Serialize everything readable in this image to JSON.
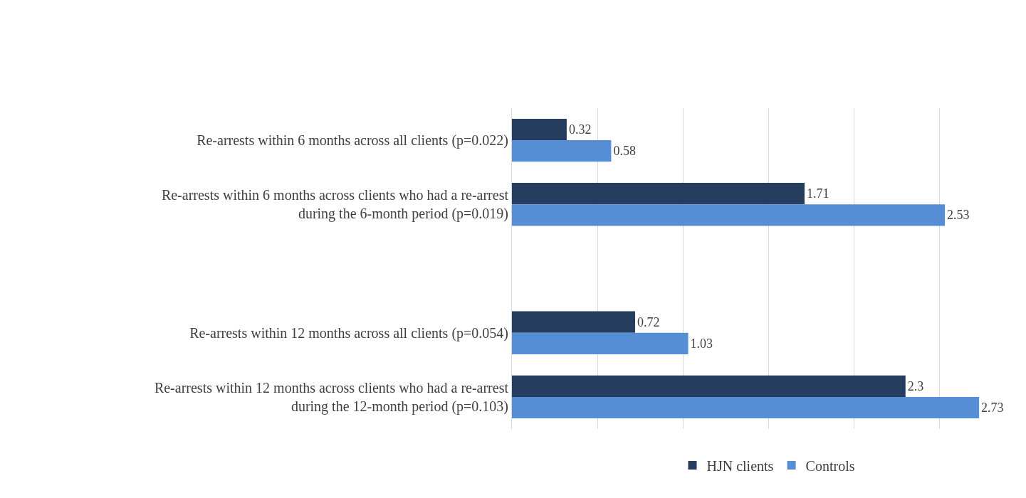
{
  "chart_data": {
    "type": "bar",
    "orientation": "horizontal",
    "categories": [
      "Re-arrests within 6 months across all clients (p=0.022)",
      "Re-arrests within 6 months across clients who had a re-arrest\nduring the 6-month period (p=0.019)",
      null,
      "Re-arrests within 12 months across all clients (p=0.054)",
      "Re-arrests within 12 months across clients who had a re-arrest\nduring the 12-month period (p=0.103)"
    ],
    "series": [
      {
        "name": "HJN clients",
        "color": "#253d5e",
        "values": [
          0.32,
          1.71,
          null,
          0.72,
          2.3
        ]
      },
      {
        "name": "Controls",
        "color": "#558ed5",
        "values": [
          0.58,
          2.53,
          null,
          1.03,
          2.73
        ]
      }
    ],
    "xlim": [
      0,
      3
    ],
    "xticks": [
      {
        "value": 0,
        "label": null
      },
      {
        "value": 0.5,
        "label": null
      },
      {
        "value": 1,
        "label": null
      },
      {
        "value": 1.5,
        "label": null
      },
      {
        "value": 2,
        "label": null
      },
      {
        "value": 2.5,
        "label": null
      },
      {
        "value": 3,
        "label": null
      }
    ],
    "tick_labels": "y",
    "grid": "x",
    "legend": "bottom",
    "data_labels": true
  }
}
